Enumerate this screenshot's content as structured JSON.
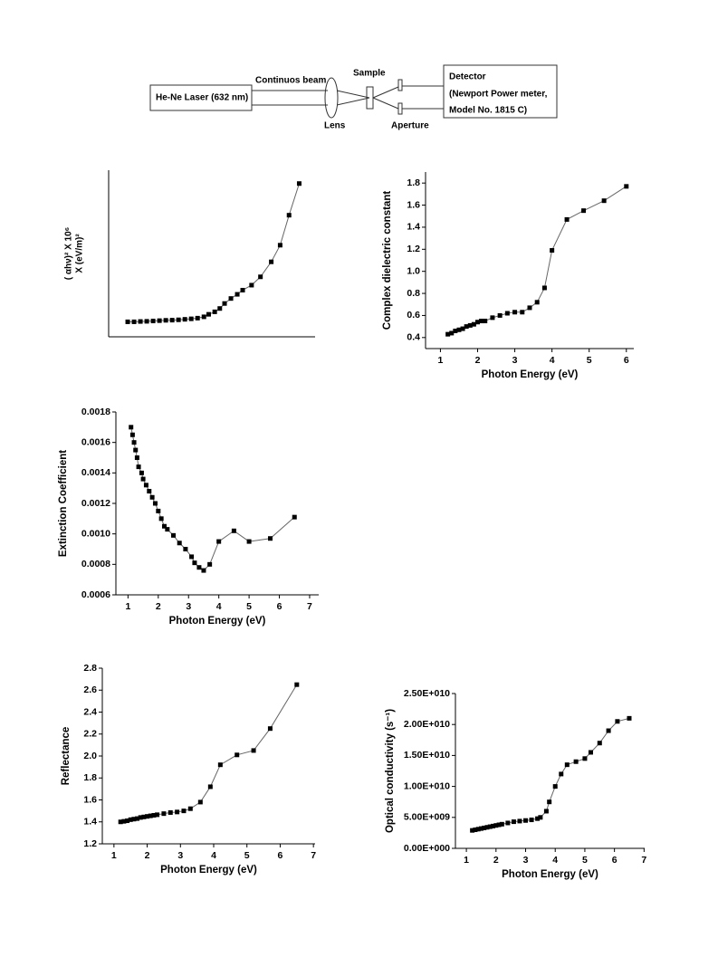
{
  "diagram": {
    "laser": "He-Ne Laser (632 nm)",
    "beam": "Continuos beam",
    "lens": "Lens",
    "sample": "Sample",
    "aperture": "Aperture",
    "detector": [
      "Detector",
      "(Newport Power meter,",
      "Model No. 1815 C)"
    ]
  },
  "chart_data": [
    {
      "type": "line",
      "ylabel": [
        "( αhν)² X 10⁶",
        "X (eV/m)²"
      ],
      "color": "#000000",
      "marker": "square",
      "x": [
        1.1,
        1.3,
        1.5,
        1.7,
        1.9,
        2.1,
        2.3,
        2.5,
        2.7,
        2.9,
        3.1,
        3.3,
        3.5,
        3.65,
        3.84,
        4.0,
        4.15,
        4.35,
        4.55,
        4.72,
        5.0,
        5.28,
        5.62,
        5.9,
        6.18,
        6.5
      ],
      "values": [
        0.9,
        0.9,
        0.92,
        0.93,
        0.95,
        0.97,
        0.99,
        1.0,
        1.02,
        1.05,
        1.08,
        1.12,
        1.2,
        1.35,
        1.5,
        1.7,
        2.0,
        2.3,
        2.55,
        2.8,
        3.1,
        3.6,
        4.5,
        5.5,
        7.3,
        9.2
      ],
      "xlim": [
        0.5,
        7
      ],
      "ylim": [
        0,
        10
      ]
    },
    {
      "type": "line",
      "ylabel": "Complex dielectric constant",
      "xlabel": "Photon Energy (eV)",
      "color": "#000000",
      "marker": "square",
      "x": [
        1.2,
        1.3,
        1.4,
        1.5,
        1.6,
        1.7,
        1.8,
        1.9,
        2.0,
        2.1,
        2.2,
        2.4,
        2.6,
        2.8,
        3.0,
        3.2,
        3.4,
        3.6,
        3.8,
        4.0,
        4.4,
        4.85,
        5.4,
        6.0
      ],
      "values": [
        0.43,
        0.44,
        0.46,
        0.47,
        0.48,
        0.5,
        0.51,
        0.52,
        0.54,
        0.55,
        0.55,
        0.58,
        0.6,
        0.62,
        0.63,
        0.63,
        0.67,
        0.72,
        0.85,
        1.19,
        1.47,
        1.55,
        1.64,
        1.77
      ],
      "xlim": [
        0.6,
        6.2
      ],
      "ylim": [
        0.3,
        1.9
      ],
      "xticks": [
        1,
        2,
        3,
        4,
        5,
        6
      ],
      "yticks": [
        0.4,
        0.6,
        0.8,
        {
          "value": 1.0,
          "label": "1.0"
        },
        1.2,
        1.4,
        1.6,
        1.8
      ]
    },
    {
      "type": "line",
      "ylabel": "Extinction Coefficient",
      "xlabel": "Photon Energy (eV)",
      "color": "#000000",
      "marker": "square",
      "x": [
        1.1,
        1.15,
        1.2,
        1.25,
        1.3,
        1.35,
        1.45,
        1.5,
        1.6,
        1.7,
        1.8,
        1.9,
        2.0,
        2.1,
        2.2,
        2.3,
        2.5,
        2.7,
        2.9,
        3.1,
        3.2,
        3.35,
        3.5,
        3.7,
        4.0,
        4.5,
        5.0,
        5.7,
        6.5
      ],
      "values": [
        0.0017,
        0.00165,
        0.0016,
        0.00155,
        0.0015,
        0.00144,
        0.0014,
        0.00136,
        0.00132,
        0.00128,
        0.00124,
        0.0012,
        0.00115,
        0.0011,
        0.00105,
        0.00103,
        0.00099,
        0.00094,
        0.0009,
        0.00085,
        0.00081,
        0.00078,
        0.00076,
        0.0008,
        0.00095,
        0.00102,
        0.00095,
        0.00097,
        0.00111
      ],
      "xlim": [
        0.6,
        7.3
      ],
      "ylim": [
        0.0006,
        0.0018
      ],
      "xticks": [
        1,
        2,
        3,
        4,
        5,
        6,
        7
      ],
      "yticks": [
        {
          "value": 0.0006,
          "label": "0.0006"
        },
        {
          "value": 0.0008,
          "label": "0.0008"
        },
        {
          "value": 0.001,
          "label": "0.0010"
        },
        {
          "value": 0.0012,
          "label": "0.0012"
        },
        {
          "value": 0.0014,
          "label": "0.0014"
        },
        {
          "value": 0.0016,
          "label": "0.0016"
        },
        {
          "value": 0.0018,
          "label": "0.0018"
        }
      ]
    },
    {
      "type": "line",
      "ylabel": "Reflectance",
      "xlabel": "Photon Energy (eV)",
      "color": "#000000",
      "marker": "square",
      "x": [
        1.2,
        1.3,
        1.4,
        1.5,
        1.6,
        1.7,
        1.8,
        1.9,
        2.0,
        2.1,
        2.2,
        2.3,
        2.5,
        2.7,
        2.9,
        3.1,
        3.3,
        3.6,
        3.9,
        4.2,
        4.7,
        5.2,
        5.7,
        6.5
      ],
      "values": [
        1.4,
        1.405,
        1.41,
        1.42,
        1.425,
        1.43,
        1.44,
        1.445,
        1.45,
        1.455,
        1.46,
        1.465,
        1.475,
        1.485,
        1.49,
        1.5,
        1.52,
        1.58,
        1.72,
        1.92,
        2.01,
        2.05,
        2.25,
        2.65
      ],
      "xlim": [
        0.65,
        7.05
      ],
      "ylim": [
        1.2,
        2.8
      ],
      "xticks": [
        1,
        2,
        3,
        4,
        5,
        6,
        7
      ],
      "yticks": [
        1.2,
        1.4,
        1.6,
        1.8,
        {
          "value": 2.0,
          "label": "2.0"
        },
        2.2,
        2.4,
        2.6,
        2.8
      ]
    },
    {
      "type": "line",
      "ylabel": "Optical conductivity (s⁻¹)",
      "xlabel": "Photon Energy (eV)",
      "color": "#000000",
      "marker": "square",
      "x": [
        1.2,
        1.3,
        1.4,
        1.5,
        1.6,
        1.7,
        1.8,
        1.9,
        2.0,
        2.1,
        2.2,
        2.4,
        2.6,
        2.8,
        3.0,
        3.2,
        3.4,
        3.5,
        3.7,
        3.8,
        4.0,
        4.2,
        4.4,
        4.7,
        5.0,
        5.2,
        5.5,
        5.8,
        6.1,
        6.5
      ],
      "values": [
        2900000000,
        3000000000,
        3100000000,
        3200000000,
        3300000000,
        3400000000,
        3500000000,
        3600000000,
        3700000000,
        3800000000,
        3900000000,
        4100000000,
        4300000000,
        4400000000,
        4500000000,
        4600000000,
        4800000000,
        5000000000,
        6000000000,
        7500000000,
        10000000000,
        12000000000,
        13500000000,
        14000000000,
        14500000000,
        15500000000,
        17000000000,
        19000000000,
        20500000000,
        21000000000
      ],
      "xlim": [
        0.63,
        7.02
      ],
      "ylim": [
        0,
        25000000000
      ],
      "xticks": [
        1,
        2,
        3,
        4,
        5,
        6,
        7
      ],
      "yticks": [
        {
          "value": 0,
          "label": "0.00E+000"
        },
        {
          "value": 5000000000,
          "label": "5.00E+009"
        },
        {
          "value": 10000000000,
          "label": "1.00E+010"
        },
        {
          "value": 15000000000,
          "label": "1.50E+010"
        },
        {
          "value": 20000000000,
          "label": "2.00E+010"
        },
        {
          "value": 25000000000,
          "label": "2.50E+010"
        }
      ]
    }
  ]
}
